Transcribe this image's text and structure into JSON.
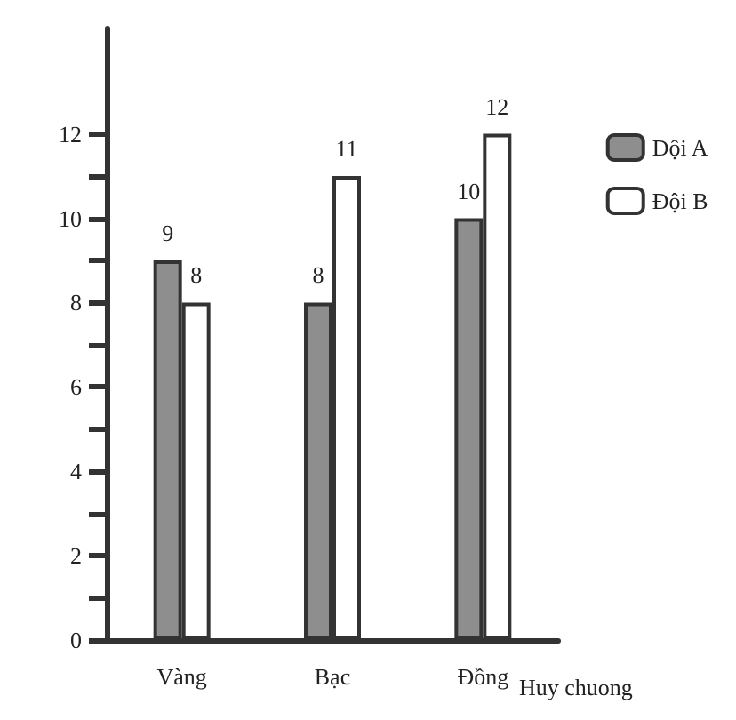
{
  "chart_data": {
    "type": "bar",
    "xlabel": "Huy chuong",
    "categories": [
      "Vàng",
      "Bạc",
      "Đồng"
    ],
    "series": [
      {
        "name": "Đội A",
        "color": "#8e8e8e",
        "values": [
          9,
          8,
          10
        ]
      },
      {
        "name": "Đội B",
        "color": "#ffffff",
        "values": [
          8,
          11,
          12
        ]
      }
    ],
    "ylim": [
      0,
      14.5
    ],
    "yticks": [
      0,
      {
        "value": 1,
        "label": null
      },
      2,
      {
        "value": 3,
        "label": null
      },
      4,
      {
        "value": 5,
        "label": null
      },
      6,
      {
        "value": 7,
        "label": null
      },
      8,
      {
        "value": 9,
        "label": null
      },
      10,
      {
        "value": 11,
        "label": null
      },
      12
    ],
    "data_labels": true,
    "legend": "top right",
    "grid": false
  }
}
